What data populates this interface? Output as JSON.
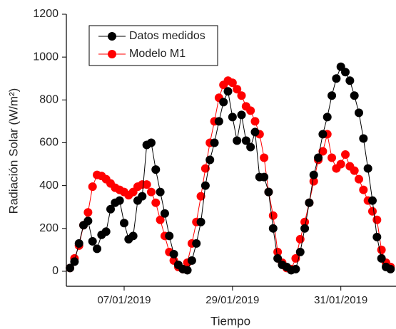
{
  "chart_data": {
    "type": "line",
    "x_label": "Tiempo",
    "y_label": "Radiación Solar (W/m²)",
    "x": [
      0,
      1,
      2,
      3,
      4,
      5,
      6,
      7,
      8,
      9,
      10,
      11,
      12,
      13,
      14,
      15,
      16,
      17,
      18,
      19,
      20,
      21,
      22,
      23,
      24,
      25,
      26,
      27,
      28,
      29,
      30,
      31,
      32,
      33,
      34,
      35,
      36,
      37,
      38,
      39,
      40,
      41,
      42,
      43,
      44,
      45,
      46,
      47,
      48,
      49,
      50,
      51,
      52,
      53,
      54,
      55,
      56,
      57,
      58,
      59,
      60,
      61,
      62,
      63,
      64,
      65,
      66,
      67,
      68,
      69,
      70,
      71
    ],
    "series": [
      {
        "name": "Datos medidos",
        "color": "#000000",
        "values": [
          15,
          45,
          130,
          215,
          235,
          140,
          105,
          170,
          185,
          290,
          320,
          330,
          225,
          150,
          165,
          330,
          350,
          590,
          600,
          475,
          370,
          270,
          165,
          80,
          30,
          10,
          5,
          50,
          130,
          230,
          400,
          520,
          600,
          700,
          790,
          840,
          720,
          610,
          730,
          610,
          580,
          650,
          440,
          440,
          370,
          200,
          60,
          30,
          20,
          5,
          10,
          90,
          200,
          320,
          450,
          530,
          640,
          720,
          820,
          900,
          955,
          930,
          890,
          820,
          740,
          620,
          480,
          330,
          160,
          60,
          20,
          10
        ]
      },
      {
        "name": "Modelo M1",
        "color": "#ff0000",
        "values": [
          15,
          60,
          120,
          215,
          275,
          395,
          450,
          445,
          430,
          410,
          390,
          380,
          370,
          355,
          370,
          395,
          405,
          405,
          370,
          320,
          240,
          165,
          90,
          50,
          20,
          10,
          40,
          130,
          230,
          350,
          480,
          600,
          700,
          810,
          870,
          890,
          880,
          850,
          820,
          770,
          750,
          700,
          640,
          530,
          370,
          260,
          90,
          40,
          15,
          10,
          60,
          150,
          230,
          320,
          420,
          520,
          560,
          640,
          530,
          480,
          500,
          545,
          490,
          470,
          430,
          380,
          330,
          280,
          240,
          100,
          40,
          20
        ]
      }
    ],
    "xlim": [
      -0.8,
      71.9
    ],
    "xticks": [
      {
        "value": 12,
        "label": "07/01/2019"
      },
      {
        "value": 36,
        "label": "29/01/2019"
      },
      {
        "value": 60,
        "label": "31/01/2019"
      }
    ],
    "ylim": [
      -70,
      1200
    ],
    "yticks": [
      0,
      200,
      400,
      600,
      800,
      1000,
      1200
    ],
    "legend": "upper left"
  }
}
